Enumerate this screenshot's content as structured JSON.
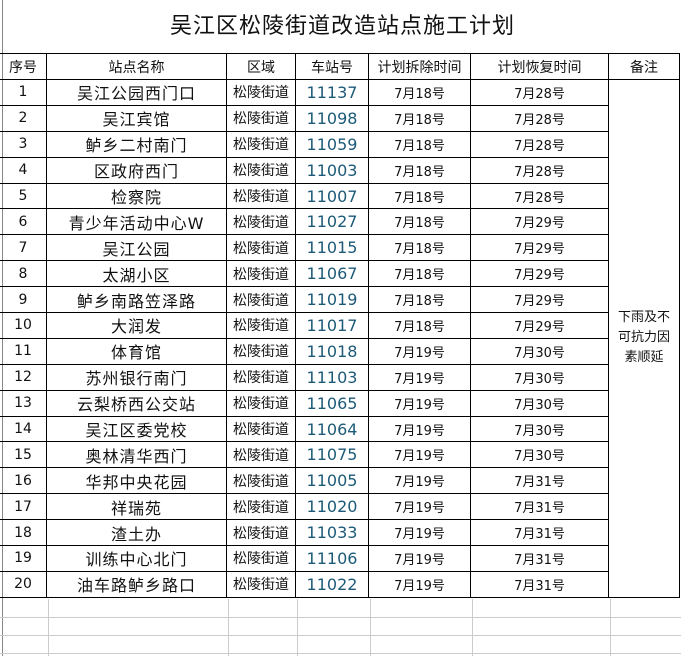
{
  "title": "吴江区松陵街道改造站点施工计划",
  "headers": [
    "序号",
    "站点名称",
    "区域",
    "车站号",
    "计划拆除时间",
    "计划恢复时间",
    "备注"
  ],
  "remark": "下雨及不可抗力因素顺延",
  "rows": [
    [
      "1",
      "吴江公园西门口",
      "松陵街道",
      "11137",
      "7月18号",
      "7月28号"
    ],
    [
      "2",
      "吴江宾馆",
      "松陵街道",
      "11098",
      "7月18号",
      "7月28号"
    ],
    [
      "3",
      "鲈乡二村南门",
      "松陵街道",
      "11059",
      "7月18号",
      "7月28号"
    ],
    [
      "4",
      "区政府西门",
      "松陵街道",
      "11003",
      "7月18号",
      "7月28号"
    ],
    [
      "5",
      "检察院",
      "松陵街道",
      "11007",
      "7月18号",
      "7月28号"
    ],
    [
      "6",
      "青少年活动中心W",
      "松陵街道",
      "11027",
      "7月18号",
      "7月29号"
    ],
    [
      "7",
      "吴江公园",
      "松陵街道",
      "11015",
      "7月18号",
      "7月29号"
    ],
    [
      "8",
      "太湖小区",
      "松陵街道",
      "11067",
      "7月18号",
      "7月29号"
    ],
    [
      "9",
      "鲈乡南路笠泽路",
      "松陵街道",
      "11019",
      "7月18号",
      "7月29号"
    ],
    [
      "10",
      "大润发",
      "松陵街道",
      "11017",
      "7月18号",
      "7月29号"
    ],
    [
      "11",
      "体育馆",
      "松陵街道",
      "11018",
      "7月19号",
      "7月30号"
    ],
    [
      "12",
      "苏州银行南门",
      "松陵街道",
      "11103",
      "7月19号",
      "7月30号"
    ],
    [
      "13",
      "云梨桥西公交站",
      "松陵街道",
      "11065",
      "7月19号",
      "7月30号"
    ],
    [
      "14",
      "吴江区委党校",
      "松陵街道",
      "11064",
      "7月19号",
      "7月30号"
    ],
    [
      "15",
      "奥林清华西门",
      "松陵街道",
      "11075",
      "7月19号",
      "7月30号"
    ],
    [
      "16",
      "华邦中央花园",
      "松陵街道",
      "11005",
      "7月19号",
      "7月31号"
    ],
    [
      "17",
      "祥瑞苑",
      "松陵街道",
      "11020",
      "7月19号",
      "7月31号"
    ],
    [
      "18",
      "渣土办",
      "松陵街道",
      "11033",
      "7月19号",
      "7月31号"
    ],
    [
      "19",
      "训练中心北门",
      "松陵街道",
      "11106",
      "7月19号",
      "7月31号"
    ],
    [
      "20",
      "油车路鲈乡路口",
      "松陵街道",
      "11022",
      "7月19号",
      "7月31号"
    ]
  ]
}
